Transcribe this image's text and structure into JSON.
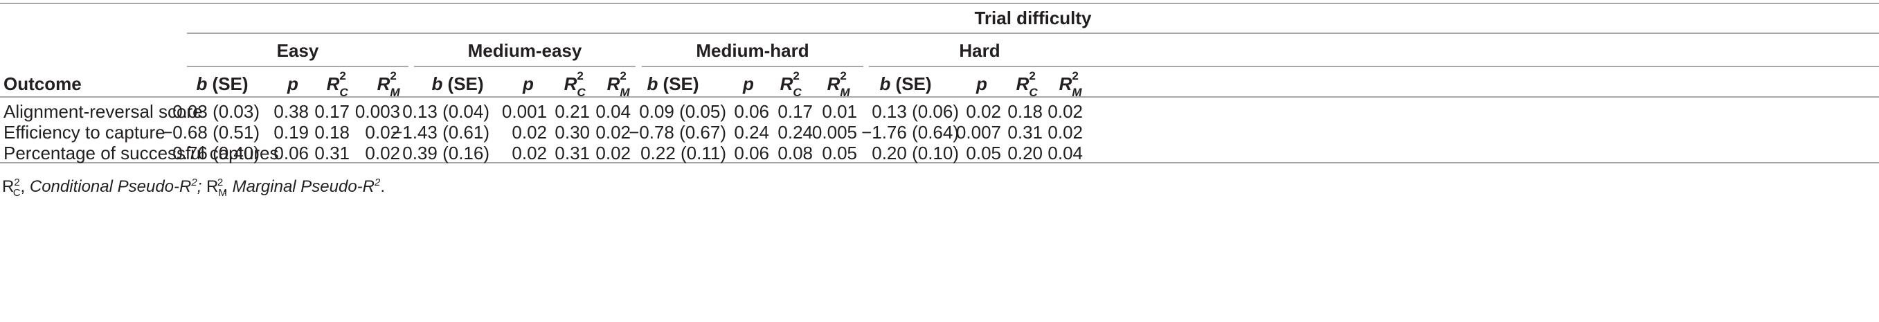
{
  "table": {
    "group_title": "Trial difficulty",
    "difficulties": [
      "Easy",
      "Medium-easy",
      "Medium-hard",
      "Hard"
    ],
    "row_header": "Outcome",
    "col_b": "b",
    "col_b_rest": " (SE)",
    "col_p": "p",
    "r_letter": "R",
    "r_sup": "2",
    "r_sub_c": "C",
    "r_sub_m": "M",
    "rows": [
      {
        "label": "Alignment-reversal score",
        "cells": [
          [
            "0.03 (0.03)",
            "0.38",
            "0.17",
            "0.003"
          ],
          [
            "0.13 (0.04)",
            "0.001",
            "0.21",
            "0.04"
          ],
          [
            "0.09 (0.05)",
            "0.06",
            "0.17",
            "0.01"
          ],
          [
            "0.13 (0.06)",
            "0.02",
            "0.18",
            "0.02"
          ]
        ]
      },
      {
        "label": "Efficiency to capture",
        "cells": [
          [
            "−0.68 (0.51)",
            "0.19",
            "0.18",
            "0.02"
          ],
          [
            "−1.43 (0.61)",
            "0.02",
            "0.30",
            "0.02"
          ],
          [
            "−0.78 (0.67)",
            "0.24",
            "0.24",
            "0.005"
          ],
          [
            "−1.76 (0.64)",
            "0.007",
            "0.31",
            "0.02"
          ]
        ]
      },
      {
        "label": "Percentage of successful captures",
        "cells": [
          [
            "0.76 (0.40)",
            "0.06",
            "0.31",
            "0.02"
          ],
          [
            "0.39 (0.16)",
            "0.02",
            "0.31",
            "0.02"
          ],
          [
            "0.22 (0.11)",
            "0.06",
            "0.08",
            "0.05"
          ],
          [
            "0.20 (0.10)",
            "0.05",
            "0.20",
            "0.04"
          ]
        ]
      }
    ]
  },
  "footnote": {
    "r": "R",
    "sup": "2",
    "sub_c": "C",
    "sub_m": "M",
    "sep1": ", ",
    "cond": "Conditional Pseudo-R",
    "sep2": "; ",
    "marg": "Marginal Pseudo-R",
    "end": "."
  }
}
